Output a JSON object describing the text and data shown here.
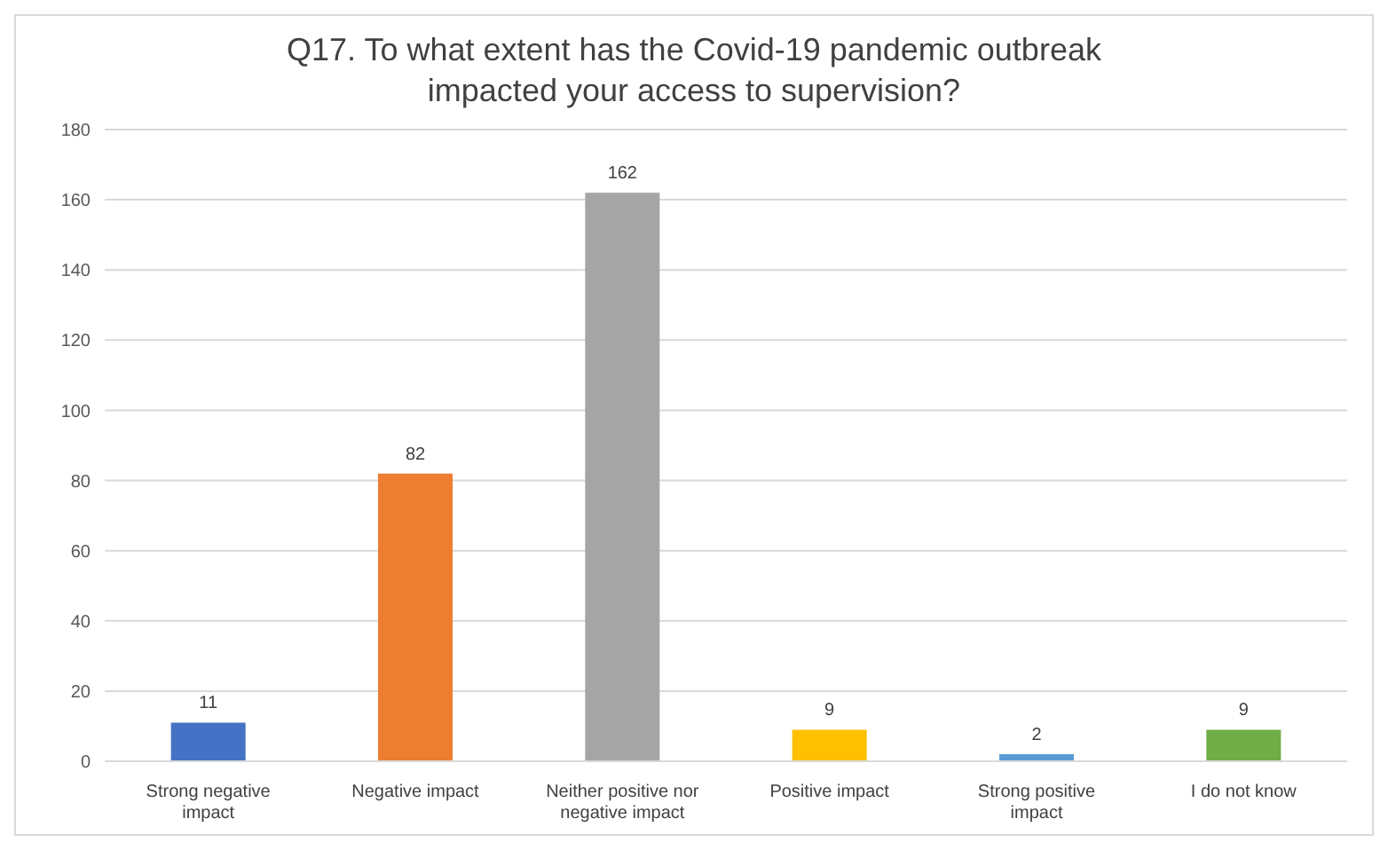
{
  "chart_data": {
    "type": "bar",
    "title": "Q17. To what extent has the Covid-19 pandemic outbreak impacted your access to supervision?",
    "categories": [
      "Strong negative impact",
      "Negative impact",
      "Neither positive nor negative impact",
      "Positive impact",
      "Strong positive impact",
      "I do not know"
    ],
    "values": [
      11,
      82,
      162,
      9,
      2,
      9
    ],
    "colors": [
      "#4472c4",
      "#ed7d31",
      "#a5a5a5",
      "#ffc000",
      "#5b9bd5",
      "#70ad47"
    ],
    "ylim": [
      0,
      180
    ],
    "yticks": [
      0,
      20,
      40,
      60,
      80,
      100,
      120,
      140,
      160,
      180
    ],
    "grid": "y",
    "data_labels": true
  }
}
